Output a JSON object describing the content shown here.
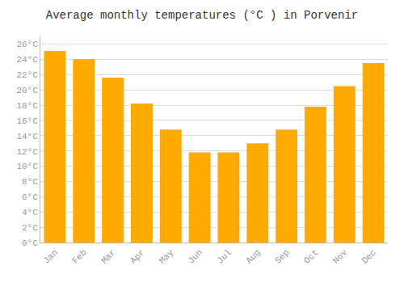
{
  "chart_data": {
    "type": "bar",
    "title": "Average monthly temperatures (°C ) in Porvenir",
    "categories": [
      "Jan",
      "Feb",
      "Mar",
      "Apr",
      "May",
      "Jun",
      "Jul",
      "Aug",
      "Sep",
      "Oct",
      "Nov",
      "Dec"
    ],
    "values": [
      25.1,
      24.0,
      21.6,
      18.2,
      14.8,
      11.8,
      11.8,
      13.0,
      14.8,
      17.8,
      20.5,
      23.5
    ],
    "color": "#FFAA00",
    "ylim": [
      0,
      27
    ],
    "yticks": [
      {
        "value": 0,
        "label": "0°C"
      },
      {
        "value": 2,
        "label": "2°C"
      },
      {
        "value": 4,
        "label": "4°C"
      },
      {
        "value": 6,
        "label": "6°C"
      },
      {
        "value": 8,
        "label": "8°C"
      },
      {
        "value": 10,
        "label": "10°C"
      },
      {
        "value": 12,
        "label": "12°C"
      },
      {
        "value": 14,
        "label": "14°C"
      },
      {
        "value": 16,
        "label": "16°C"
      },
      {
        "value": 18,
        "label": "18°C"
      },
      {
        "value": 20,
        "label": "20°C"
      },
      {
        "value": 22,
        "label": "22°C"
      },
      {
        "value": 24,
        "label": "24°C"
      },
      {
        "value": 26,
        "label": "26°C"
      }
    ],
    "grid": true
  }
}
